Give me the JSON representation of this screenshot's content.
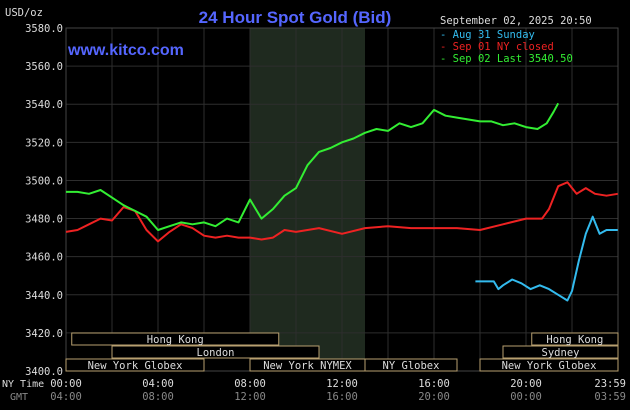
{
  "header": {
    "title": "24 Hour Spot Gold (Bid)",
    "unit": "USD/oz",
    "website": "www.kitco.com",
    "timestamp": "September 02, 2025 20:50"
  },
  "legend": [
    {
      "label": "Aug 31 Sunday",
      "color": "#33bbee"
    },
    {
      "label": "Sep 01 NY closed",
      "color": "#ee2222"
    },
    {
      "label": "Sep 02 Last 3540.50",
      "color": "#33ee33"
    }
  ],
  "axis_labels": {
    "ny_time": "NY Time",
    "gmt": "GMT"
  },
  "colors": {
    "background": "#000000",
    "grid": "#2e2e2e",
    "shade": "#1f2a1f",
    "title": "#5566ff",
    "text": "#dddddd",
    "gmt_text": "#888888",
    "session_border": "#b8a070",
    "session_text": "#dddddd"
  },
  "sessions": [
    {
      "label": "Hong Kong",
      "row": 1,
      "start": 0.25,
      "end": 9.25
    },
    {
      "label": "London",
      "row": 2,
      "start": 2.0,
      "end": 11.0
    },
    {
      "label": "New York Globex",
      "row": 3,
      "start": 0.0,
      "end": 6.0
    },
    {
      "label": "New York NYMEX",
      "row": 3,
      "start": 8.0,
      "end": 13.0
    },
    {
      "label": "NY Globex",
      "row": 3,
      "start": 13.0,
      "end": 17.0
    },
    {
      "label": "Hong Kong",
      "row": 1,
      "start": 20.25,
      "end": 24.0
    },
    {
      "label": "Sydney",
      "row": 2,
      "start": 19.0,
      "end": 24.0
    },
    {
      "label": "New York Globex",
      "row": 3,
      "start": 18.0,
      "end": 24.0
    }
  ],
  "chart_data": {
    "type": "line",
    "title": "24 Hour Spot Gold (Bid)",
    "ylabel": "USD/oz",
    "xlim": [
      0,
      24
    ],
    "ylim": [
      3400,
      3580
    ],
    "shaded_x": [
      8.0,
      13.0
    ],
    "yticks": [
      "3400.0",
      "3420.0",
      "3440.0",
      "3460.0",
      "3480.0",
      "3500.0",
      "3520.0",
      "3540.0",
      "3560.0",
      "3580.0"
    ],
    "xticks_ny": [
      "00:00",
      "04:00",
      "08:00",
      "12:00",
      "16:00",
      "20:00",
      "23:59"
    ],
    "xticks_gmt": [
      "04:00",
      "08:00",
      "12:00",
      "16:00",
      "20:00",
      "00:00",
      "03:59"
    ],
    "grid": true,
    "legend_position": "top-right",
    "series": [
      {
        "name": "Aug 31 Sunday",
        "color": "#33bbee",
        "x": [
          17.8,
          18.6,
          18.8,
          19.0,
          19.4,
          19.8,
          20.2,
          20.6,
          21.0,
          21.4,
          21.8,
          22.0,
          22.3,
          22.6,
          22.9,
          23.2,
          23.5,
          23.99
        ],
        "y": [
          3447,
          3447,
          3443,
          3445,
          3448,
          3446,
          3443,
          3445,
          3443,
          3440,
          3437,
          3442,
          3458,
          3472,
          3481,
          3472,
          3474,
          3474
        ]
      },
      {
        "name": "Sep 01 NY closed",
        "color": "#ee2222",
        "x": [
          0.0,
          0.5,
          1.0,
          1.5,
          2.0,
          2.5,
          3.0,
          3.5,
          4.0,
          4.5,
          5.0,
          5.5,
          6.0,
          6.5,
          7.0,
          7.5,
          8.0,
          8.5,
          9.0,
          9.5,
          10.0,
          11.0,
          12.0,
          13.0,
          14.0,
          15.0,
          16.0,
          17.0,
          18.0,
          19.0,
          20.0,
          20.7,
          21.0,
          21.4,
          21.8,
          22.2,
          22.6,
          23.0,
          23.5,
          23.99
        ],
        "y": [
          3473,
          3474,
          3477,
          3480,
          3479,
          3486,
          3484,
          3474,
          3468,
          3473,
          3477,
          3475,
          3471,
          3470,
          3471,
          3470,
          3470,
          3469,
          3470,
          3474,
          3473,
          3475,
          3472,
          3475,
          3476,
          3475,
          3475,
          3475,
          3474,
          3477,
          3480,
          3480,
          3485,
          3497,
          3499,
          3493,
          3496,
          3493,
          3492,
          3493
        ]
      },
      {
        "name": "Sep 02 Last 3540.50",
        "color": "#33ee33",
        "x": [
          0.0,
          0.5,
          1.0,
          1.5,
          2.0,
          2.5,
          3.0,
          3.5,
          4.0,
          4.5,
          5.0,
          5.5,
          6.0,
          6.5,
          7.0,
          7.5,
          8.0,
          8.5,
          9.0,
          9.5,
          10.0,
          10.5,
          11.0,
          11.5,
          12.0,
          12.5,
          13.0,
          13.5,
          14.0,
          14.5,
          15.0,
          15.5,
          16.0,
          16.5,
          17.0,
          17.5,
          18.0,
          18.5,
          19.0,
          19.5,
          20.0,
          20.5,
          20.9,
          21.2,
          21.4
        ],
        "y": [
          3494,
          3494,
          3493,
          3495,
          3491,
          3487,
          3484,
          3481,
          3474,
          3476,
          3478,
          3477,
          3478,
          3476,
          3480,
          3478,
          3490,
          3480,
          3485,
          3492,
          3496,
          3508,
          3515,
          3517,
          3520,
          3522,
          3525,
          3527,
          3526,
          3530,
          3528,
          3530,
          3537,
          3534,
          3533,
          3532,
          3531,
          3531,
          3529,
          3530,
          3528,
          3527,
          3530,
          3536,
          3540.5
        ]
      }
    ]
  }
}
